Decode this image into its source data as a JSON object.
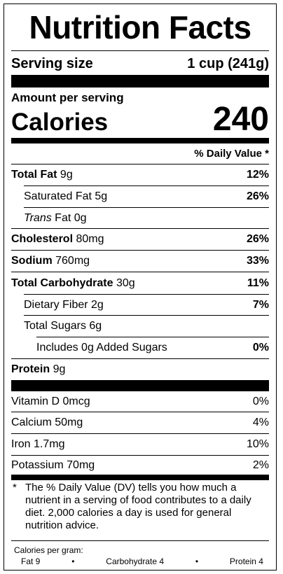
{
  "title": "Nutrition Facts",
  "serving": {
    "label": "Serving size",
    "value": "1 cup (241g)"
  },
  "amount_per_serving": "Amount per serving",
  "calories": {
    "label": "Calories",
    "value": "240"
  },
  "dv_header": "% Daily Value *",
  "nutrients": {
    "total_fat": {
      "name": "Total Fat",
      "amount": " 9g",
      "dv": "12%"
    },
    "saturated_fat": {
      "name": "Saturated Fat 5g",
      "dv": "26%"
    },
    "trans_fat": {
      "name_italic": "Trans",
      "name_rest": " Fat 0g"
    },
    "cholesterol": {
      "name": "Cholesterol",
      "amount": " 80mg",
      "dv": "26%"
    },
    "sodium": {
      "name": "Sodium",
      "amount": " 760mg",
      "dv": "33%"
    },
    "total_carbohydrate": {
      "name": "Total Carbohydrate",
      "amount": " 30g",
      "dv": "11%"
    },
    "dietary_fiber": {
      "name": "Dietary Fiber 2g",
      "dv": "7%"
    },
    "total_sugars": {
      "name": "Total Sugars 6g"
    },
    "added_sugars": {
      "name": "Includes 0g Added Sugars",
      "dv": "0%"
    },
    "protein": {
      "name": "Protein",
      "amount": " 9g"
    }
  },
  "micronutrients": {
    "vitamin_d": {
      "name": "Vitamin D 0mcg",
      "dv": "0%"
    },
    "calcium": {
      "name": "Calcium 50mg",
      "dv": "4%"
    },
    "iron": {
      "name": "Iron 1.7mg",
      "dv": "10%"
    },
    "potassium": {
      "name": "Potassium 70mg",
      "dv": "2%"
    }
  },
  "footnote": {
    "star": "*",
    "text": "The % Daily Value (DV) tells you how much a nutrient in a serving of food contributes to a daily diet. 2,000 calories a day is used for general nutrition advice."
  },
  "calories_per_gram": {
    "title": "Calories per gram:",
    "fat": "Fat 9",
    "bullet": "•",
    "carbohydrate": "Carbohydrate 4",
    "protein": "Protein 4"
  }
}
